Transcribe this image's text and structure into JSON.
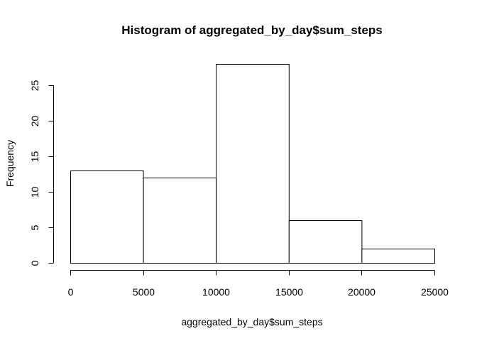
{
  "chart_data": {
    "type": "bar",
    "title": "Histogram of aggregated_by_day$sum_steps",
    "xlabel": "aggregated_by_day$sum_steps",
    "ylabel": "Frequency",
    "bins": [
      {
        "from": 0,
        "to": 5000,
        "count": 13
      },
      {
        "from": 5000,
        "to": 10000,
        "count": 12
      },
      {
        "from": 10000,
        "to": 15000,
        "count": 28
      },
      {
        "from": 15000,
        "to": 20000,
        "count": 6
      },
      {
        "from": 20000,
        "to": 25000,
        "count": 2
      }
    ],
    "x_ticks": [
      "0",
      "5000",
      "10000",
      "15000",
      "20000",
      "25000"
    ],
    "y_ticks": [
      "0",
      "5",
      "10",
      "15",
      "20",
      "25"
    ],
    "xlim": [
      0,
      25000
    ],
    "ylim": [
      0,
      28
    ],
    "grid": false,
    "bar_fill": "#ffffff",
    "bar_stroke": "#000000"
  }
}
